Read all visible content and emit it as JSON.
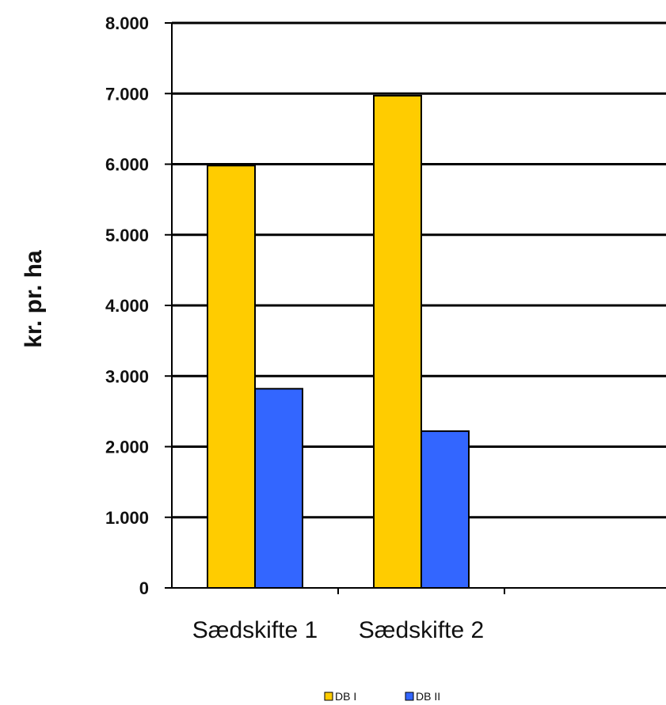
{
  "chart_data": {
    "type": "bar",
    "categories": [
      "Sædskifte 1",
      "Sædskifte 2",
      ""
    ],
    "series": [
      {
        "name": "DB I",
        "values": [
          5980,
          6970,
          null
        ],
        "color": "#FFCC00"
      },
      {
        "name": "DB II",
        "values": [
          2820,
          2220,
          null
        ],
        "color": "#3366FF"
      }
    ],
    "ylabel": "kr. pr. ha",
    "xlabel": "",
    "ylim": [
      0,
      8000
    ],
    "yticks": [
      0,
      1000,
      2000,
      3000,
      4000,
      5000,
      6000,
      7000,
      8000
    ],
    "ytick_labels": [
      "0",
      "1.000",
      "2.000",
      "3.000",
      "4.000",
      "5.000",
      "6.000",
      "7.000",
      "8.000"
    ],
    "grid": true,
    "legend_position": "bottom"
  }
}
